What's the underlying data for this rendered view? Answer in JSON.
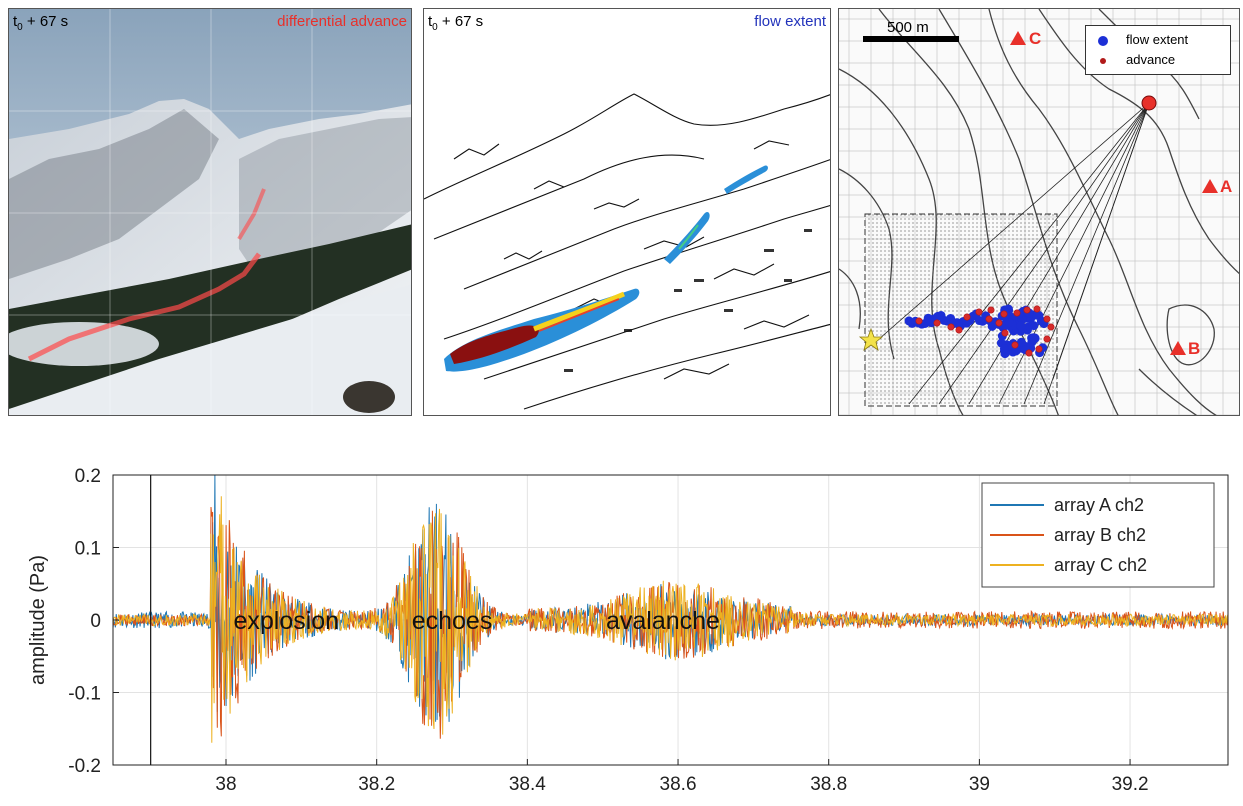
{
  "panels": {
    "photo": {
      "time_label_main": "t",
      "time_label_sub": "0",
      "time_label_rest": " + 67 s",
      "title": "differential advance",
      "title_color": "#e8302a"
    },
    "flow": {
      "time_label_main": "t",
      "time_label_sub": "0",
      "time_label_rest": " + 67 s",
      "title": "flow extent",
      "title_color": "#2233bb"
    },
    "map": {
      "scalebar_label": "500 m",
      "stations": [
        {
          "name": "C"
        },
        {
          "name": "A"
        },
        {
          "name": "B"
        }
      ],
      "legend": [
        {
          "label": "flow extent",
          "color": "#1c2fd6"
        },
        {
          "label": "advance",
          "color": "#b11a1a"
        }
      ]
    }
  },
  "chart_data": {
    "type": "line",
    "xlabel": "",
    "ylabel": "amplitude (Pa)",
    "xlim": [
      37.85,
      39.33
    ],
    "ylim": [
      -0.2,
      0.2
    ],
    "xticks": [
      38,
      38.2,
      38.4,
      38.6,
      38.8,
      39,
      39.2
    ],
    "yticks": [
      -0.2,
      -0.1,
      0,
      0.1,
      0.2
    ],
    "xtick_labels": [
      "38",
      "38.2",
      "38.4",
      "38.6",
      "38.8",
      "39",
      "39.2"
    ],
    "ytick_labels": [
      "-0.2",
      "-0.1",
      "0",
      "0.1",
      "0.2"
    ],
    "grid": true,
    "legend_position": "top-right",
    "vline": 37.9,
    "annotations": [
      {
        "text": "explosion",
        "x": 38.08,
        "y": 0.0
      },
      {
        "text": "echoes",
        "x": 38.3,
        "y": 0.0
      },
      {
        "text": "avalanche",
        "x": 38.58,
        "y": 0.0
      }
    ],
    "series": [
      {
        "name": "array A ch2",
        "color": "#1f77b4"
      },
      {
        "name": "array B ch2",
        "color": "#d95319"
      },
      {
        "name": "array C ch2",
        "color": "#edb120"
      }
    ]
  }
}
